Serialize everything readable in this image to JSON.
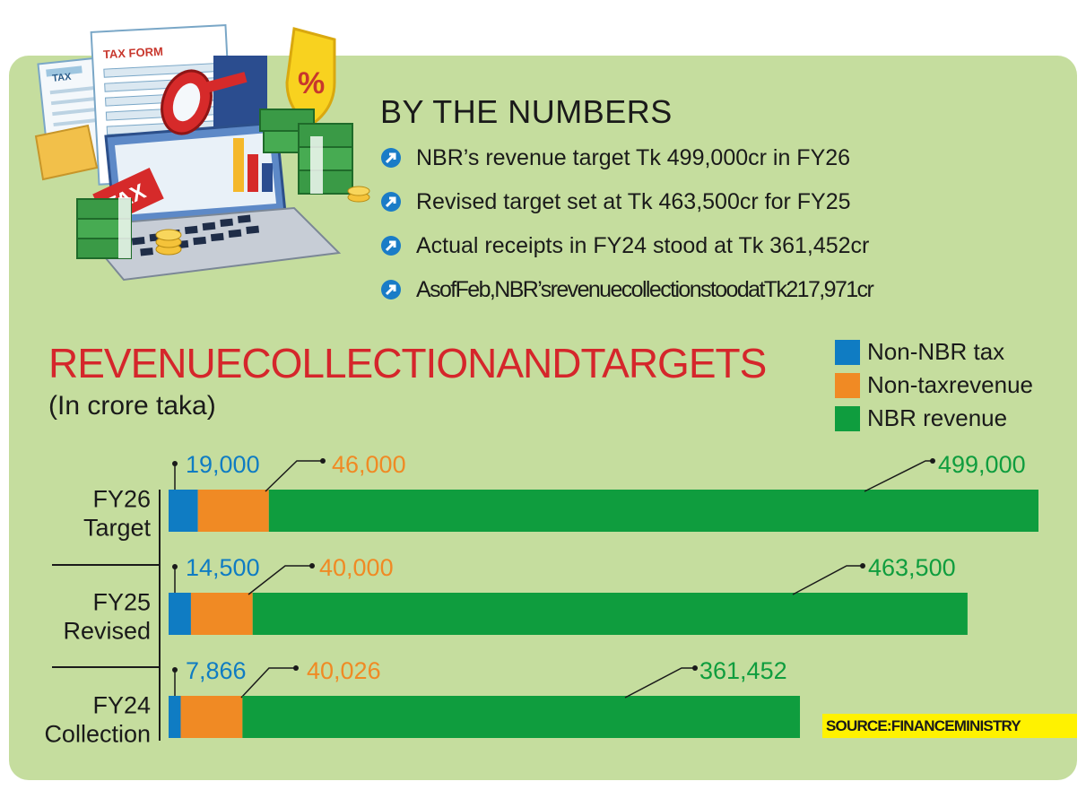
{
  "header": {
    "title": "BY THE NUMBERS",
    "facts": [
      "NBR’s revenue target Tk 499,000cr in FY26",
      "Revised target set at Tk 463,500cr for FY25",
      "Actual receipts in FY24 stood at Tk 361,452cr",
      "AsofFeb,NBR’srevenuecollectionstoodatTk217,971cr"
    ]
  },
  "illustration": {
    "icons": [
      "tax-form-icon",
      "laptop-icon",
      "magnifier-icon",
      "percent-shield-icon",
      "cash-stack-icon",
      "coin-stack-icon",
      "bar-chart-icon"
    ],
    "labels": {
      "tax_doc": "TAX",
      "tax_form": "TAX FORM",
      "tax_key": "TAX",
      "percent": "%"
    }
  },
  "colors": {
    "panel": "#c5dd9e",
    "title_red": "#d5262b",
    "non_nbr": "#0f7cc3",
    "non_tax": "#f08a24",
    "nbr": "#0f9d3e",
    "source_bg": "#fff200",
    "bullet": "#1a7cc7"
  },
  "chart_data": {
    "type": "bar",
    "orientation": "horizontal",
    "stacked": true,
    "title": "REVENUECOLLECTIONANDTARGETS",
    "subtitle": "(In crore taka)",
    "categories": [
      {
        "line1": "FY26",
        "line2": "Target"
      },
      {
        "line1": "FY25",
        "line2": "Revised"
      },
      {
        "line1": "FY24",
        "line2": "Collection"
      }
    ],
    "series": [
      {
        "name": "Non-NBR tax",
        "color": "#0f7cc3",
        "values": [
          19000,
          14500,
          7866
        ],
        "labels": [
          "19,000",
          "14,500",
          "7,866"
        ]
      },
      {
        "name": "Non-taxrevenue",
        "color": "#f08a24",
        "values": [
          46000,
          40000,
          40026
        ],
        "labels": [
          "46,000",
          "40,000",
          "40,026"
        ]
      },
      {
        "name": "NBR revenue",
        "color": "#0f9d3e",
        "values": [
          499000,
          463500,
          361452
        ],
        "labels": [
          "499,000",
          "463,500",
          "361,452"
        ]
      }
    ],
    "legend": {
      "position": "top-right",
      "order": [
        "Non-NBR tax",
        "Non-taxrevenue",
        "NBR revenue"
      ]
    },
    "grid": false,
    "source": "SOURCE:FINANCEMINISTRY"
  }
}
